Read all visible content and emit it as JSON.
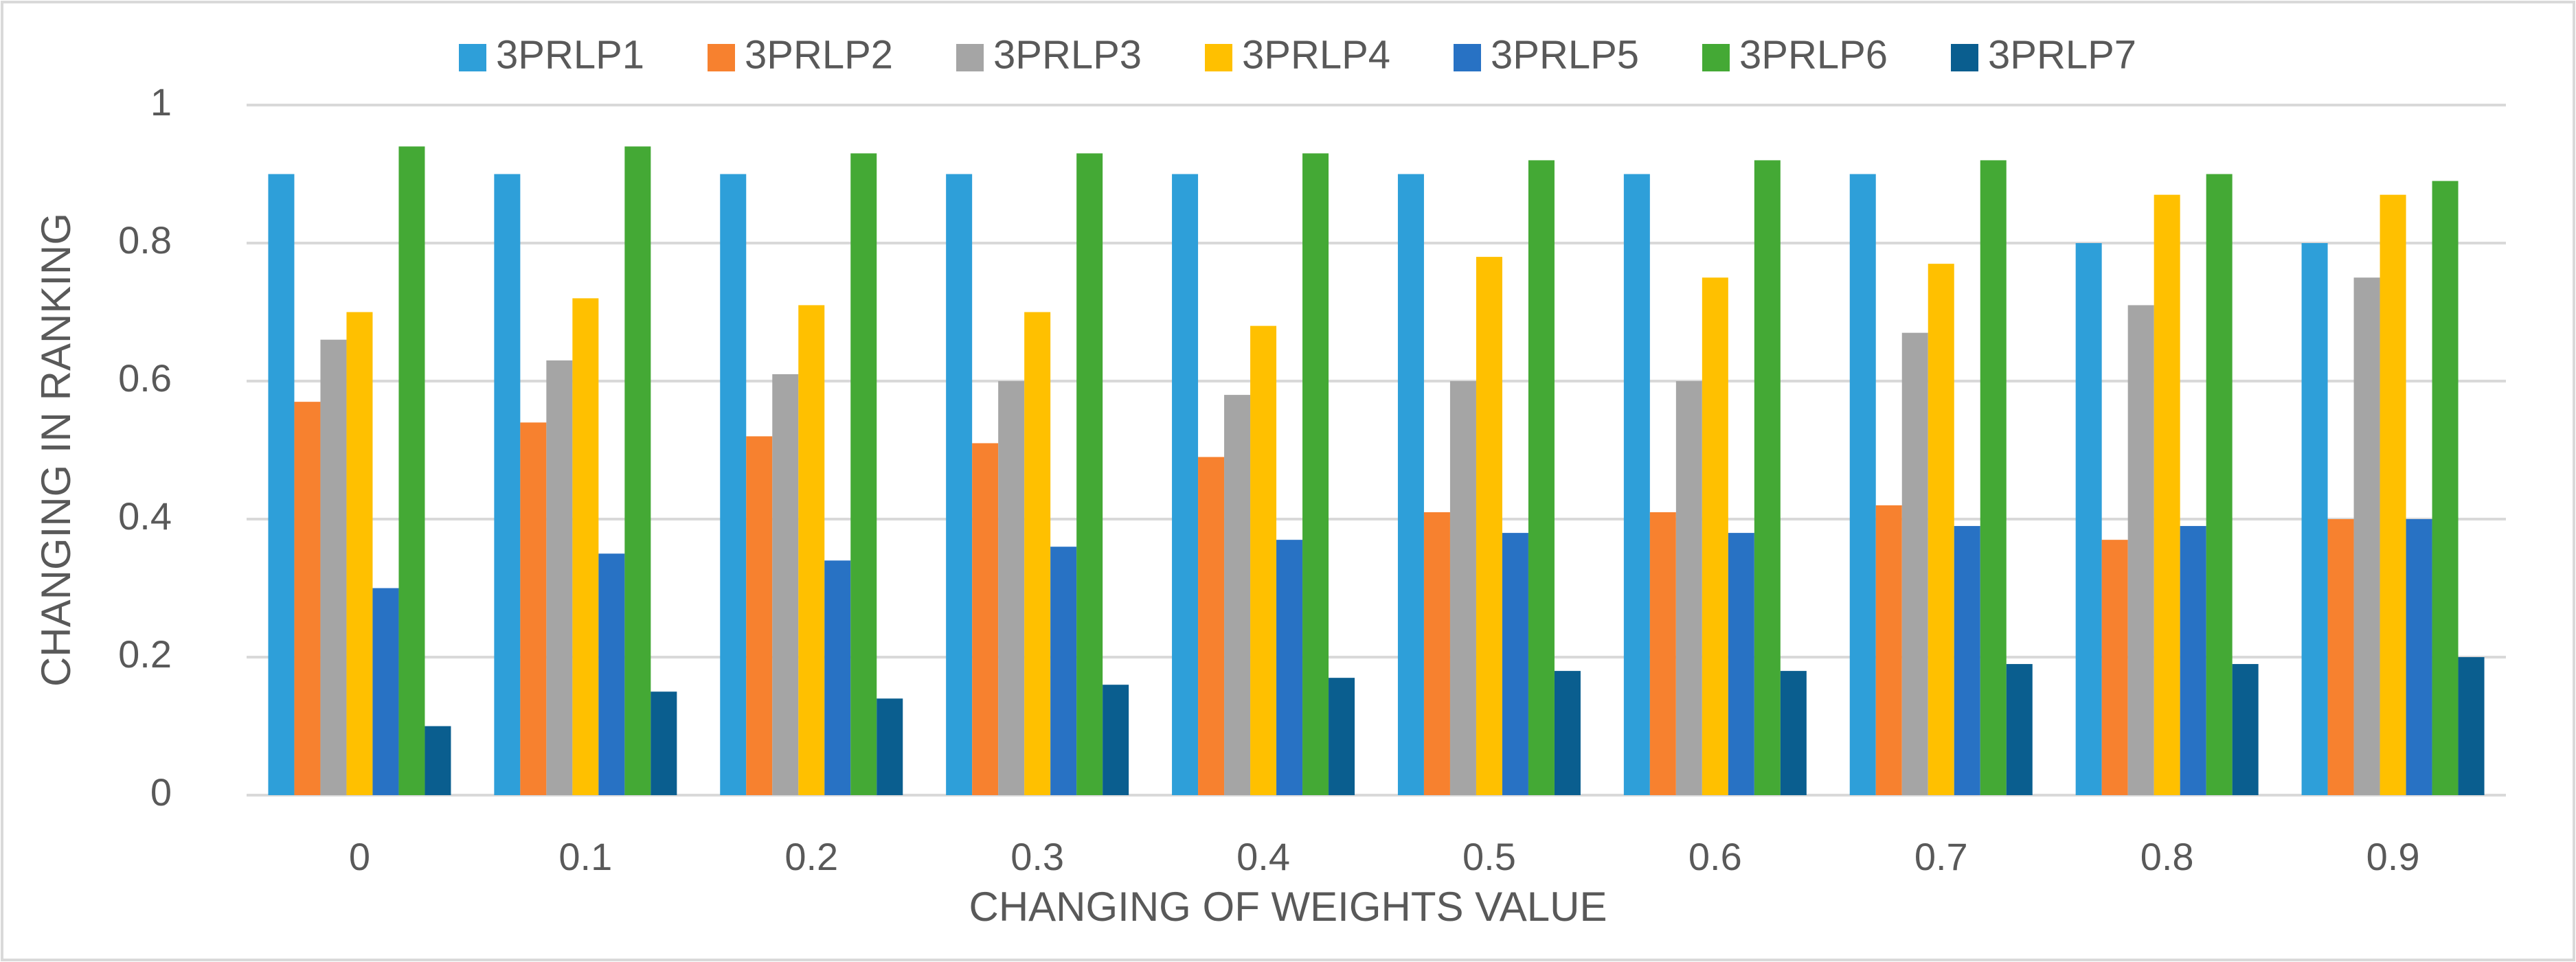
{
  "chart_data": {
    "type": "bar",
    "x_label": "CHANGING OF WEIGHTS VALUE",
    "y_label": "CHANGING IN RANKING",
    "categories": [
      "0",
      "0.1",
      "0.2",
      "0.3",
      "0.4",
      "0.5",
      "0.6",
      "0.7",
      "0.8",
      "0.9"
    ],
    "series": [
      {
        "name": "3PRLP1",
        "color": "#2e9fd9",
        "values": [
          0.9,
          0.9,
          0.9,
          0.9,
          0.9,
          0.9,
          0.9,
          0.9,
          0.8,
          0.8
        ]
      },
      {
        "name": "3PRLP2",
        "color": "#f7812f",
        "values": [
          0.57,
          0.54,
          0.52,
          0.51,
          0.49,
          0.41,
          0.41,
          0.42,
          0.37,
          0.4
        ]
      },
      {
        "name": "3PRLP3",
        "color": "#a5a5a5",
        "values": [
          0.66,
          0.63,
          0.61,
          0.6,
          0.58,
          0.6,
          0.6,
          0.67,
          0.71,
          0.75
        ]
      },
      {
        "name": "3PRLP4",
        "color": "#ffc000",
        "values": [
          0.7,
          0.72,
          0.71,
          0.7,
          0.68,
          0.78,
          0.75,
          0.77,
          0.87,
          0.87
        ]
      },
      {
        "name": "3PRLP5",
        "color": "#2872c4",
        "values": [
          0.3,
          0.35,
          0.34,
          0.36,
          0.37,
          0.38,
          0.38,
          0.39,
          0.39,
          0.4
        ]
      },
      {
        "name": "3PRLP6",
        "color": "#44a935",
        "values": [
          0.94,
          0.94,
          0.93,
          0.93,
          0.93,
          0.92,
          0.92,
          0.92,
          0.9,
          0.89
        ]
      },
      {
        "name": "3PRLP7",
        "color": "#0a5e8f",
        "values": [
          0.1,
          0.15,
          0.14,
          0.16,
          0.17,
          0.18,
          0.18,
          0.19,
          0.19,
          0.2
        ]
      }
    ],
    "ylim": [
      0,
      1
    ],
    "yticks": [
      0,
      0.2,
      0.4,
      0.6,
      0.8,
      1
    ],
    "grid": true,
    "legend": "top"
  }
}
